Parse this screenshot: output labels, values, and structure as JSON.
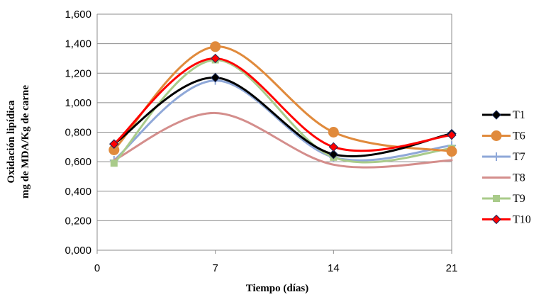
{
  "chart_data": {
    "type": "line",
    "xlabel": "Tiempo (días)",
    "ylabel_line1": "Oxidación lipídica",
    "ylabel_line2": "mg de MDA/Kg de carne",
    "x": [
      1,
      7,
      14,
      21
    ],
    "xlim": [
      0,
      21
    ],
    "xticks": [
      "0",
      "7",
      "14",
      "21"
    ],
    "ylim": [
      0,
      1.6
    ],
    "yticks": [
      "0,000",
      "0,200",
      "0,400",
      "0,600",
      "0,800",
      "1,000",
      "1,200",
      "1,400",
      "1,600"
    ],
    "grid": true,
    "legend_position": "right",
    "smooth": true,
    "series": [
      {
        "name": "T1",
        "values": [
          0.72,
          1.17,
          0.65,
          0.79
        ],
        "color": "#000000",
        "marker": "diamond",
        "width": 3
      },
      {
        "name": "T6",
        "values": [
          0.68,
          1.38,
          0.8,
          0.67
        ],
        "color": "#E08A3C",
        "marker": "circle",
        "width": 3
      },
      {
        "name": "T7",
        "values": [
          0.61,
          1.15,
          0.63,
          0.71
        ],
        "color": "#8FA8D8",
        "marker": "plus",
        "width": 3
      },
      {
        "name": "T8",
        "values": [
          0.61,
          0.93,
          0.58,
          0.61
        ],
        "color": "#D48E8C",
        "marker": "none",
        "width": 3
      },
      {
        "name": "T9",
        "values": [
          0.59,
          1.29,
          0.63,
          0.69
        ],
        "color": "#A9CB8A",
        "marker": "square",
        "width": 3
      },
      {
        "name": "T10",
        "values": [
          0.72,
          1.3,
          0.7,
          0.78
        ],
        "color": "#FF0000",
        "marker": "diamond",
        "width": 3
      }
    ],
    "draw_order": [
      2,
      3,
      4,
      1,
      0,
      5
    ]
  }
}
